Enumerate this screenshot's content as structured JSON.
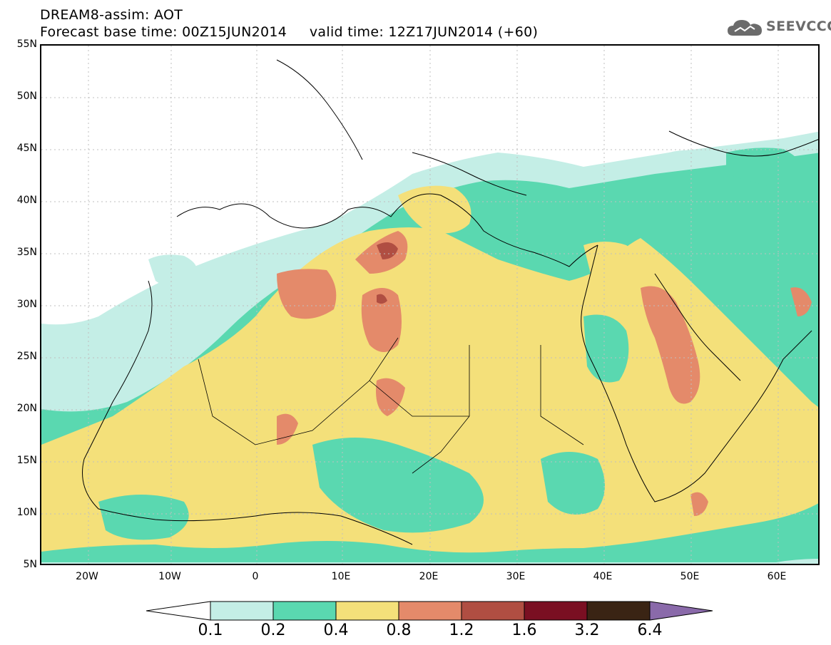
{
  "header": {
    "title_line1": "DREAM8-assim: AOT",
    "title_line2": "Forecast base time: 00Z15JUN2014     valid time: 12Z17JUN2014 (+60)"
  },
  "logo": {
    "text": "SEEVCCC",
    "icon": "cloud-icon"
  },
  "map": {
    "lat_labels": [
      "55N",
      "50N",
      "45N",
      "40N",
      "35N",
      "30N",
      "25N",
      "20N",
      "15N",
      "10N",
      "5N"
    ],
    "lon_labels": [
      "20W",
      "10W",
      "0",
      "10E",
      "20E",
      "30E",
      "40E",
      "50E",
      "60E"
    ]
  },
  "colorbar": {
    "levels": [
      "0.1",
      "0.2",
      "0.4",
      "0.8",
      "1.2",
      "1.6",
      "3.2",
      "6.4"
    ],
    "colors": [
      "#ffffff",
      "#c4eee6",
      "#5ad8b0",
      "#f4e07a",
      "#e48a6a",
      "#b04e42",
      "#7a0f22",
      "#3a2414",
      "#8a6aaa"
    ]
  }
}
